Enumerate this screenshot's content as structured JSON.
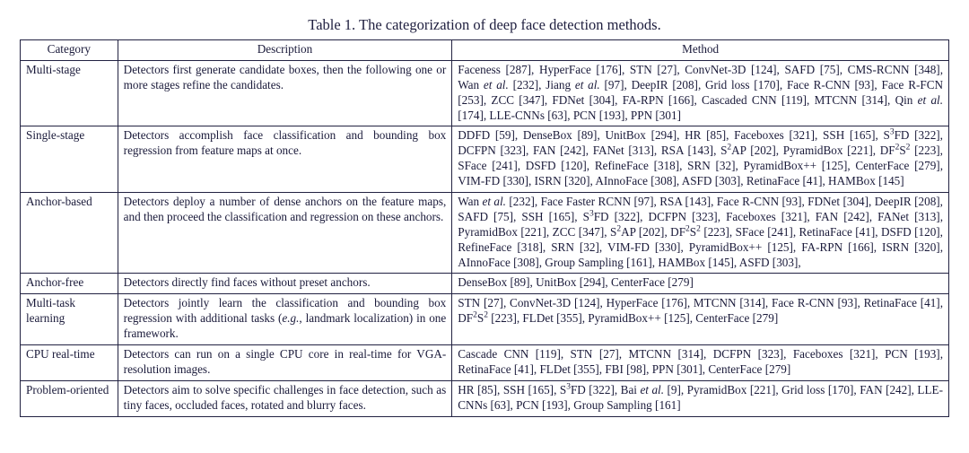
{
  "caption": "Table 1. The categorization of deep face detection methods.",
  "columns": {
    "category": "Category",
    "description": "Description",
    "method": "Method"
  },
  "rows": [
    {
      "category": "Multi-stage",
      "description": "Detectors first generate candidate boxes, then the following one or more stages refine the candidates.",
      "method": "Faceness [287], HyperFace [176], STN [27], ConvNet-3D [124], SAFD [75], CMS-RCNN [348], Wan <i>et al.</i> [232], Jiang <i>et al.</i> [97], DeepIR [208], Grid loss [170], Face R-CNN [93], Face R-FCN [253], ZCC [347], FDNet [304], FA-RPN [166], Cascaded CNN [119], MTCNN [314], Qin <i>et al.</i> [174], LLE-CNNs [63], PCN [193], PPN [301]"
    },
    {
      "category": "Single-stage",
      "description": "Detectors accomplish face classification and bounding box regression from feature maps at once.",
      "method": "DDFD [59], DenseBox [89], UnitBox [294], HR [85], Faceboxes [321], SSH [165], S<sup>3</sup>FD [322], DCFPN [323], FAN [242], FANet [313], RSA [143], S<sup>2</sup>AP [202], PyramidBox [221], DF<sup>2</sup>S<sup>2</sup> [223], SFace [241], DSFD [120], RefineFace [318], SRN [32], PyramidBox++ [125], CenterFace [279], VIM-FD [330], ISRN [320], AInnoFace [308], ASFD [303], RetinaFace [41], HAMBox [145]"
    },
    {
      "category": "Anchor-based",
      "description": "Detectors deploy a number of dense anchors on the feature maps, and then proceed the classification and regression on these anchors.",
      "method": "Wan <i>et al.</i> [232], Face Faster RCNN [97], RSA [143], Face R-CNN [93], FDNet [304], DeepIR [208], SAFD [75], SSH [165], S<sup>3</sup>FD [322], DCFPN [323], Faceboxes [321], FAN [242], FANet [313], PyramidBox [221], ZCC [347], S<sup>2</sup>AP [202], DF<sup>2</sup>S<sup>2</sup> [223], SFace [241], RetinaFace [41], DSFD [120], RefineFace [318], SRN [32], VIM-FD [330], PyramidBox++ [125], FA-RPN [166], ISRN [320], AInnoFace [308], Group Sampling [161], HAMBox [145], ASFD [303],"
    },
    {
      "category": "Anchor-free",
      "description": "Detectors directly find faces without preset anchors.",
      "method": "DenseBox [89], UnitBox [294], CenterFace [279]"
    },
    {
      "category": "Multi-task learning",
      "description": "Detectors jointly learn the classification and bounding box regression with additional tasks (<i>e.g.</i>, landmark localization) in one framework.",
      "method": "STN [27], ConvNet-3D [124], HyperFace [176], MTCNN [314], Face R-CNN [93], RetinaFace [41], DF<sup>2</sup>S<sup>2</sup> [223], FLDet [355], PyramidBox++ [125], CenterFace [279]"
    },
    {
      "category": "CPU real-time",
      "description": "Detectors can run on a single CPU core in real-time for VGA-resolution images.",
      "method": "Cascade CNN [119], STN [27], MTCNN [314], DCFPN [323], Faceboxes [321], PCN [193], RetinaFace [41], FLDet [355], FBI [98], PPN [301], CenterFace [279]"
    },
    {
      "category": "Problem-oriented",
      "description": "Detectors aim to solve specific challenges in face detection, such as tiny faces, occluded faces, rotated and blurry faces.",
      "method": "HR [85], SSH [165], S<sup>3</sup>FD [322], Bai <i>et al.</i> [9], PyramidBox [221], Grid loss [170], FAN [242], LLE-CNNs [63], PCN [193], Group Sampling [161]"
    }
  ],
  "style": {
    "font_family": "Times New Roman",
    "caption_fontsize": 16.5,
    "cell_fontsize": 13.2,
    "text_color": "#1a1a3a",
    "border_color": "#222242",
    "background": "#ffffff",
    "column_widths_pct": {
      "category": 10.5,
      "description": 36.0,
      "method": 53.5
    }
  }
}
